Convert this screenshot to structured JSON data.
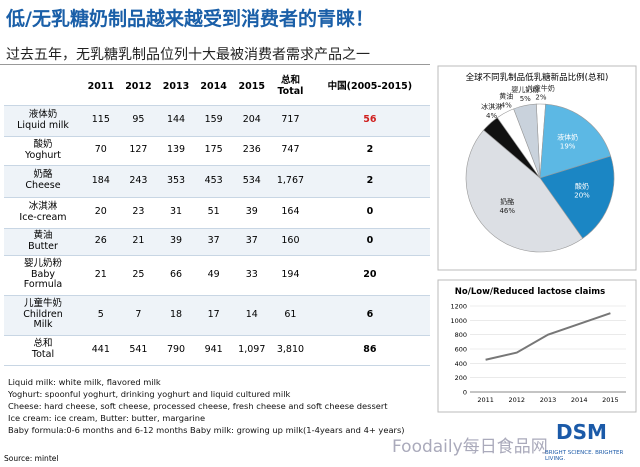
{
  "title": "低/无乳糖奶制品越来越受到消费者的青睐！",
  "subtitle": "过去五年，无乳糖乳制品位列十大最被消费者需求产品之一",
  "table": {
    "header": [
      "2011",
      "2012",
      "2013",
      "2014",
      "2015",
      "总和\nTotal",
      "中国(2005-2015)"
    ],
    "rows": [
      [
        "液体奶\nLiquid milk",
        "115",
        "95",
        "144",
        "159",
        "204",
        "717",
        "56"
      ],
      [
        "酸奶\nYoghurt",
        "70",
        "127",
        "139",
        "175",
        "236",
        "747",
        "2"
      ],
      [
        "奶酪\nCheese",
        "184",
        "243",
        "353",
        "453",
        "534",
        "1,767",
        "2"
      ],
      [
        "冰淇淋\nIce-cream",
        "20",
        "23",
        "31",
        "51",
        "39",
        "164",
        "0"
      ],
      [
        "黄油\nButter",
        "26",
        "21",
        "39",
        "37",
        "37",
        "160",
        "0"
      ],
      [
        "婴儿奶粉\nBaby\nFormula",
        "21",
        "25",
        "66",
        "49",
        "33",
        "194",
        "20"
      ],
      [
        "儿童牛奶\nChildren\nMilk",
        "5",
        "7",
        "18",
        "17",
        "14",
        "61",
        "6"
      ],
      [
        "总和\nTotal",
        "441",
        "541",
        "790",
        "941",
        "1,097",
        "3,810",
        "86"
      ]
    ]
  },
  "notes": [
    "Liquid milk: white milk, flavored milk",
    "Yoghurt: spoonful yoghurt, drinking yoghurt and liquid cultured milk",
    "Cheese: hard cheese, soft cheese, processed cheese, fresh cheese and soft cheese dessert",
    "Ice cream: ice cream, Butter: butter, margarine",
    "Baby formula:0-6 months and 6-12 months  Baby milk: growing up milk(1-4years and 4+ years)"
  ],
  "source": "Source: mintel",
  "watermark": "Foodaily每日食品网",
  "logo": "DSM",
  "tagline": "BRIGHT SCIENCE. BRIGHTER LIVING.",
  "chart_data": [
    {
      "type": "pie",
      "title": "全球不同乳制品低乳糖新品比例(总和)",
      "categories": [
        "儿童牛奶",
        "液体奶",
        "酸奶",
        "奶酪",
        "冰淇淋",
        "黄油",
        "婴儿奶粉"
      ],
      "values": [
        2,
        19,
        20,
        46,
        4,
        4,
        5
      ],
      "value_labels": [
        "2%",
        "19%",
        "20%",
        "46%",
        "4%",
        "4%",
        "5%"
      ],
      "colors": [
        "#ffffff",
        "#5cb8e4",
        "#1b86c4",
        "#dcdfe4",
        "#111111",
        "#ffffff",
        "#c9d2dc"
      ]
    },
    {
      "type": "line",
      "title": "No/Low/Reduced lactose claims",
      "categories": [
        "2011",
        "2012",
        "2013",
        "2014",
        "2015"
      ],
      "series": [
        {
          "name": "claims",
          "color": "#777777",
          "values": [
            450,
            550,
            800,
            950,
            1100
          ]
        }
      ],
      "ylim": [
        0,
        1200
      ],
      "yticks": [
        0,
        200,
        400,
        600,
        800,
        1000,
        1200
      ]
    }
  ]
}
